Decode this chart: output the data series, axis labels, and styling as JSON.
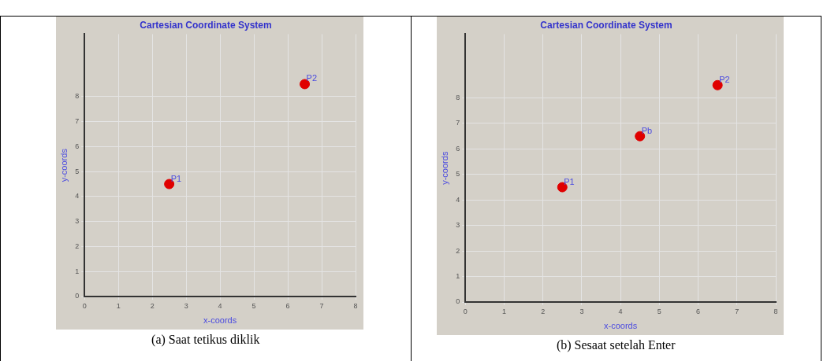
{
  "chart_data": [
    {
      "type": "scatter",
      "title": "Cartesian Coordinate System",
      "xlabel": "x-coords",
      "ylabel": "y-coords",
      "series": [
        {
          "color": "#e00000",
          "x": [
            2.5,
            6.5
          ],
          "values": [
            4.5,
            8.5
          ]
        }
      ],
      "xlim": [
        0,
        8
      ],
      "ylim": [
        0,
        10.5
      ],
      "xticks": [
        0,
        1,
        2,
        3,
        4,
        5,
        6,
        7,
        8
      ],
      "yticks": [
        0,
        1,
        2,
        3,
        4,
        5,
        6,
        7,
        8
      ],
      "grid": true,
      "legend": false,
      "marker": "circle",
      "annotations": [
        {
          "text": "P1",
          "x": 2.5,
          "y": 4.5
        },
        {
          "text": "P2",
          "x": 6.5,
          "y": 8.5
        },
        "(a) Saat tetikus diklik"
      ]
    },
    {
      "type": "scatter",
      "title": "Cartesian Coordinate System",
      "xlabel": "x-coords",
      "ylabel": "y-coords",
      "series": [
        {
          "color": "#e00000",
          "x": [
            2.5,
            4.5,
            6.5
          ],
          "values": [
            4.5,
            6.5,
            8.5
          ]
        }
      ],
      "xlim": [
        0,
        8
      ],
      "ylim": [
        0,
        10.5
      ],
      "xticks": [
        0,
        1,
        2,
        3,
        4,
        5,
        6,
        7,
        8
      ],
      "yticks": [
        0,
        1,
        2,
        3,
        4,
        5,
        6,
        7,
        8
      ],
      "grid": true,
      "legend": false,
      "marker": "circle",
      "annotations": [
        {
          "text": "P1",
          "x": 2.5,
          "y": 4.5
        },
        {
          "text": "Pb",
          "x": 4.5,
          "y": 6.5
        },
        {
          "text": "P2",
          "x": 6.5,
          "y": 8.5
        },
        "(b) Sesaat setelah Enter"
      ]
    }
  ]
}
